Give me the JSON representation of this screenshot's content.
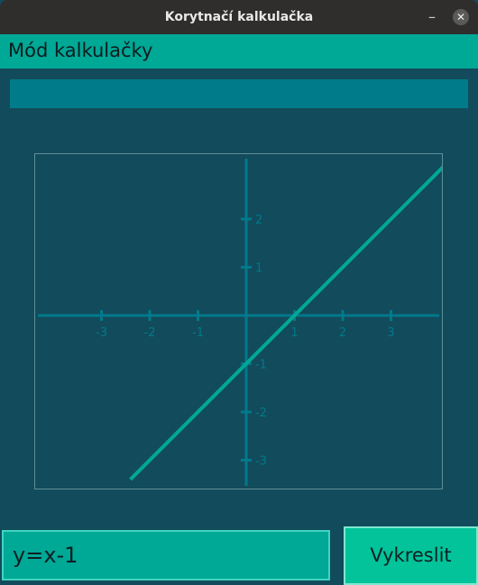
{
  "window": {
    "title": "Korytnačí kalkulačka",
    "minimize_glyph": "–",
    "close_glyph": "✕"
  },
  "mode_bar": {
    "label": "Mód kalkulačky"
  },
  "display": {
    "value": ""
  },
  "graph": {
    "x_ticks": [
      "-3",
      "-2",
      "-1",
      "1",
      "2",
      "3"
    ],
    "y_ticks": [
      "2",
      "1",
      "-1",
      "-2",
      "-3"
    ],
    "colors": {
      "axis": "#00798c",
      "line": "#00a896",
      "border": "#5f8f98"
    }
  },
  "chart_data": {
    "type": "line",
    "function": "y=x-1",
    "x": [
      -2.4,
      4.2
    ],
    "y": [
      -3.4,
      3.2
    ],
    "xlim": [
      -4.2,
      4.2
    ],
    "ylim": [
      -3.4,
      3.2
    ],
    "x_ticks": [
      -3,
      -2,
      -1,
      1,
      2,
      3
    ],
    "y_ticks": [
      2,
      1,
      -1,
      -2,
      -3
    ],
    "grid": false
  },
  "input": {
    "value": "y=x-1"
  },
  "button": {
    "label": "Vykreslit"
  }
}
